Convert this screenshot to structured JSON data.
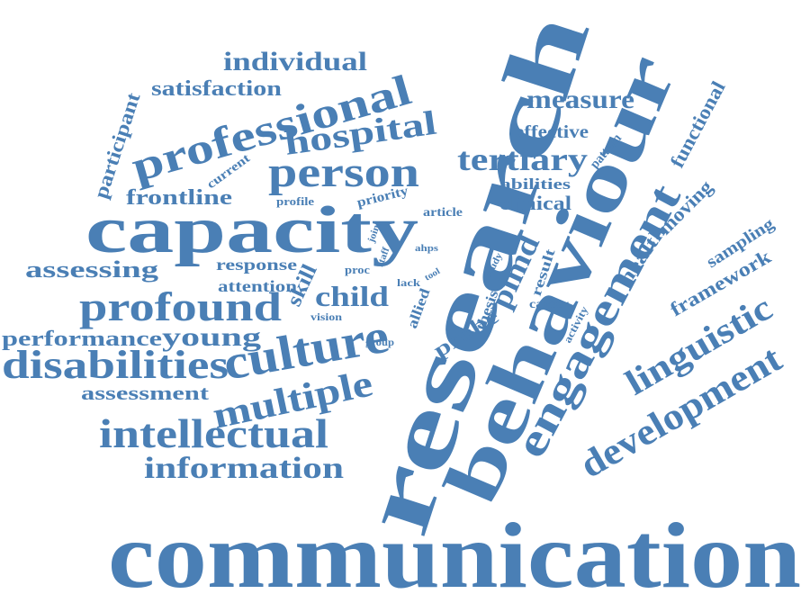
{
  "word_cloud": {
    "color": "#4a7fb5",
    "words": {
      "communication": "communication",
      "research": "research",
      "behaviour": "behaviour",
      "capacity": "capacity",
      "professional": "professional",
      "person": "person",
      "culture": "culture",
      "profound": "profound",
      "disabilities": "disabilities",
      "intellectual": "intellectual",
      "information": "information",
      "multiple": "multiple",
      "engagement": "engagement",
      "development": "development",
      "linguistic": "linguistic",
      "hospital": "hospital",
      "tertiary": "tertiary",
      "individual": "individual",
      "satisfaction": "satisfaction",
      "measure": "measure",
      "effective": "effective",
      "frontline": "frontline",
      "participant": "participant",
      "current": "current",
      "profile": "profile",
      "priority": "priority",
      "abilities": "abilities",
      "clinical": "clinical",
      "pattern": "pattern",
      "functional": "functional",
      "moving": "moving",
      "health": "health",
      "sampling": "sampling",
      "framework": "framework",
      "assessing": "assessing",
      "response": "response",
      "attention": "attention",
      "skill": "skill",
      "child": "child",
      "young": "young",
      "performance": "performance",
      "assessment": "assessment",
      "vision": "vision",
      "proc": "proc",
      "lack": "lack",
      "allied": "allied",
      "group": "group",
      "probe": "probe",
      "thesis": "thesis",
      "pimd": "pimd",
      "result": "result",
      "study": "study",
      "career": "career",
      "activity": "activity",
      "article": "article",
      "join": "join",
      "staff": "staff",
      "ahps": "ahps",
      "tool": "tool"
    }
  }
}
